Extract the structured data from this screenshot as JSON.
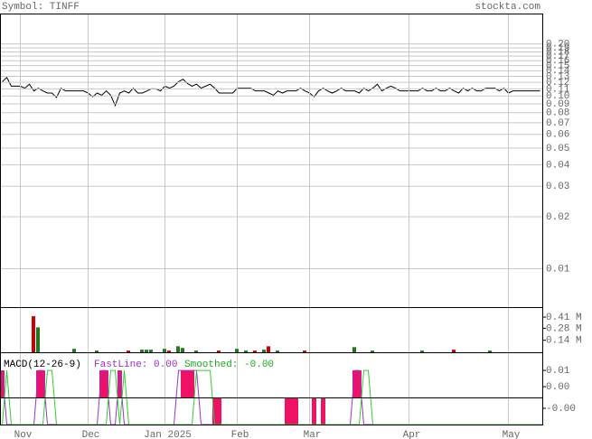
{
  "header": {
    "symbol": "Symbol: TINFF",
    "site": "stockta.com"
  },
  "chart_data": [
    {
      "type": "line",
      "scale": "log",
      "color": "#000000",
      "grid": true,
      "values": [
        0.121,
        0.128,
        0.114,
        0.114,
        0.114,
        0.111,
        0.117,
        0.107,
        0.111,
        0.107,
        0.104,
        0.104,
        0.098,
        0.111,
        0.107,
        0.107,
        0.107,
        0.107,
        0.107,
        0.104,
        0.099,
        0.104,
        0.101,
        0.107,
        0.101,
        0.088,
        0.104,
        0.107,
        0.104,
        0.111,
        0.104,
        0.104,
        0.107,
        0.11,
        0.11,
        0.107,
        0.114,
        0.111,
        0.114,
        0.121,
        0.125,
        0.118,
        0.114,
        0.117,
        0.111,
        0.114,
        0.117,
        0.111,
        0.104,
        0.104,
        0.104,
        0.104,
        0.111,
        0.111,
        0.111,
        0.111,
        0.107,
        0.107,
        0.107,
        0.104,
        0.101,
        0.107,
        0.104,
        0.107,
        0.107,
        0.107,
        0.111,
        0.107,
        0.104,
        0.099,
        0.107,
        0.111,
        0.107,
        0.104,
        0.107,
        0.111,
        0.107,
        0.107,
        0.107,
        0.104,
        0.111,
        0.107,
        0.111,
        0.117,
        0.107,
        0.111,
        0.114,
        0.111,
        0.107,
        0.107,
        0.107,
        0.107,
        0.107,
        0.111,
        0.107,
        0.107,
        0.111,
        0.107,
        0.107,
        0.111,
        0.107,
        0.104,
        0.111,
        0.107,
        0.111,
        0.107,
        0.107,
        0.111,
        0.111,
        0.111,
        0.107,
        0.111,
        0.104,
        0.107,
        0.107,
        0.107,
        0.107,
        0.107,
        0.107,
        0.107
      ],
      "ylim": [
        0.006,
        0.3
      ],
      "yticks": [
        {
          "value": 0.2,
          "label": "0.20"
        },
        {
          "value": 0.19,
          "label": "0.19"
        },
        {
          "value": 0.18,
          "label": "0.18"
        },
        {
          "value": 0.17,
          "label": "0.17"
        },
        {
          "value": 0.16,
          "label": "0.16"
        },
        {
          "value": 0.15,
          "label": "0.15"
        },
        {
          "value": 0.14,
          "label": "0.14"
        },
        {
          "value": 0.13,
          "label": "0.13"
        },
        {
          "value": 0.12,
          "label": "0.12"
        },
        {
          "value": 0.11,
          "label": "0.11"
        },
        {
          "value": 0.1,
          "label": "0.10"
        },
        {
          "value": 0.09,
          "label": "0.09"
        },
        {
          "value": 0.08,
          "label": "0.08"
        },
        {
          "value": 0.07,
          "label": "0.07"
        },
        {
          "value": 0.06,
          "label": "0.06"
        },
        {
          "value": 0.05,
          "label": "0.05"
        },
        {
          "value": 0.04,
          "label": "0.04"
        },
        {
          "value": 0.03,
          "label": "0.03"
        },
        {
          "value": 0.02,
          "label": "0.02"
        },
        {
          "value": 0.01,
          "label": "0.01"
        }
      ],
      "xticks": [
        {
          "value": 4,
          "label": "Nov"
        },
        {
          "value": 19,
          "label": "Dec"
        },
        {
          "value": 36,
          "label": "Jan 2025"
        },
        {
          "value": 52,
          "label": "Feb"
        },
        {
          "value": 68,
          "label": "Mar"
        },
        {
          "value": 90,
          "label": "Apr"
        },
        {
          "value": 112,
          "label": "May"
        }
      ]
    },
    {
      "type": "bar",
      "up_color": "#1f7a1f",
      "down_color": "#cc0000",
      "values": [
        0,
        0,
        0,
        0,
        0,
        0,
        0,
        0.42,
        0.29,
        0,
        0,
        0,
        0,
        0,
        0,
        0,
        0.04,
        0,
        0,
        0,
        0,
        0.02,
        0,
        0,
        0,
        0,
        0,
        0,
        0.02,
        0,
        0,
        0.03,
        0.03,
        0.03,
        0,
        0,
        0.04,
        0.02,
        0,
        0.07,
        0.05,
        0,
        0,
        0.02,
        0,
        0,
        0,
        0,
        0.02,
        0,
        0,
        0,
        0.04,
        0,
        0.02,
        0,
        0.02,
        0,
        0.03,
        0.07,
        0,
        0.02,
        0,
        0,
        0,
        0,
        0,
        0.02,
        0,
        0,
        0,
        0,
        0,
        0,
        0,
        0,
        0,
        0,
        0.06,
        0,
        0,
        0,
        0.02,
        0,
        0,
        0,
        0,
        0,
        0,
        0,
        0,
        0,
        0,
        0.02,
        0,
        0,
        0,
        0,
        0,
        0,
        0.03,
        0,
        0,
        0,
        0,
        0,
        0,
        0,
        0.02,
        0,
        0,
        0,
        0,
        0,
        0,
        0,
        0,
        0,
        0,
        0
      ],
      "ylim": [
        0,
        0.526
      ],
      "yticks": [
        {
          "value": 0.41,
          "label": "0.41 M"
        },
        {
          "value": 0.28,
          "label": "0.28 M"
        },
        {
          "value": 0.14,
          "label": "0.14 M"
        }
      ]
    },
    {
      "type": "macd",
      "title": "MACD(12-26-9)",
      "fast_label": "FastLine: 0.00",
      "smooth_label": "Smoothed: -0.00",
      "histogram": {
        "color": "#ee1166",
        "values": [
          0.01,
          0,
          0,
          0,
          0,
          0,
          0,
          0,
          0.01,
          0.01,
          0,
          0,
          0,
          0,
          0,
          0,
          0,
          0,
          0,
          0,
          0,
          0,
          0.01,
          0.01,
          0,
          0,
          0.01,
          0,
          0,
          0,
          0,
          0,
          0,
          0,
          0,
          0,
          0,
          0,
          0,
          0,
          0.01,
          0.01,
          0.01,
          0,
          0,
          0,
          0,
          -0.01,
          -0.01,
          0,
          0,
          0,
          0,
          0,
          0,
          0,
          0,
          0,
          0,
          0,
          0,
          0,
          0,
          -0.01,
          -0.01,
          -0.01,
          0,
          0,
          0,
          -0.01,
          0,
          -0.01,
          0,
          0,
          0,
          0,
          0,
          0,
          0.01,
          0.01,
          0,
          0,
          0,
          0,
          0,
          0,
          0,
          0,
          0,
          0,
          0,
          0,
          0,
          0,
          0,
          0,
          0,
          0,
          0,
          0,
          0,
          0,
          0,
          0,
          0,
          0,
          0,
          0,
          0,
          0,
          0,
          0,
          0,
          0,
          0,
          0,
          0,
          0,
          0,
          0
        ]
      },
      "series": [
        {
          "color": "#9933cc",
          "values": [
            0.01,
            -0.01,
            -0.01,
            -0.01,
            -0.01,
            -0.01,
            -0.01,
            -0.01,
            0.01,
            0.01,
            -0.01,
            -0.01,
            -0.01,
            -0.01,
            -0.01,
            -0.01,
            -0.01,
            -0.01,
            -0.01,
            -0.01,
            -0.01,
            -0.01,
            0.01,
            0.01,
            -0.01,
            -0.01,
            0.01,
            -0.01,
            -0.01,
            -0.01,
            -0.01,
            -0.01,
            -0.01,
            -0.01,
            -0.01,
            -0.01,
            -0.01,
            -0.01,
            -0.01,
            0.01,
            0.01,
            0.01,
            0.01,
            0.01,
            -0.01,
            -0.01,
            -0.01,
            -0.01,
            -0.01,
            -0.01,
            -0.01,
            -0.01,
            -0.01,
            -0.01,
            -0.01,
            -0.01,
            -0.01,
            -0.01,
            -0.01,
            -0.01,
            -0.01,
            -0.01,
            -0.01,
            -0.01,
            -0.01,
            -0.01,
            -0.01,
            -0.01,
            -0.01,
            -0.01,
            -0.01,
            -0.01,
            -0.01,
            -0.01,
            -0.01,
            -0.01,
            -0.01,
            -0.01,
            0.01,
            0.01,
            -0.01,
            -0.01,
            -0.01,
            -0.01,
            -0.01,
            -0.01,
            -0.01,
            -0.01,
            -0.01,
            -0.01,
            -0.01,
            -0.01,
            -0.01,
            -0.01,
            -0.01,
            -0.01,
            -0.01,
            -0.01,
            -0.01,
            -0.01,
            -0.01,
            -0.01,
            -0.01,
            -0.01,
            -0.01,
            -0.01,
            -0.01,
            -0.01,
            -0.01,
            -0.01,
            -0.01,
            -0.01,
            -0.01,
            -0.01,
            -0.01,
            -0.01,
            -0.01,
            -0.01,
            -0.01,
            -0.01
          ]
        },
        {
          "color": "#33cc33",
          "values": [
            -0.01,
            0.01,
            -0.01,
            -0.01,
            -0.01,
            -0.01,
            -0.01,
            -0.01,
            -0.01,
            -0.01,
            0.01,
            0.01,
            -0.01,
            -0.01,
            -0.01,
            -0.01,
            -0.01,
            -0.01,
            -0.01,
            -0.01,
            -0.01,
            -0.01,
            -0.01,
            -0.01,
            0.01,
            0.01,
            -0.01,
            0.01,
            -0.01,
            -0.01,
            -0.01,
            -0.01,
            -0.01,
            -0.01,
            -0.01,
            -0.01,
            -0.01,
            -0.01,
            -0.01,
            -0.01,
            -0.01,
            -0.01,
            -0.01,
            0.01,
            0.01,
            0.01,
            0.01,
            -0.01,
            -0.01,
            -0.01,
            -0.01,
            -0.01,
            -0.01,
            -0.01,
            -0.01,
            -0.01,
            -0.01,
            -0.01,
            -0.01,
            -0.01,
            -0.01,
            -0.01,
            -0.01,
            -0.01,
            -0.01,
            -0.01,
            -0.01,
            -0.01,
            -0.01,
            -0.01,
            -0.01,
            -0.01,
            -0.01,
            -0.01,
            -0.01,
            -0.01,
            -0.01,
            -0.01,
            -0.01,
            -0.01,
            0.01,
            0.01,
            -0.01,
            -0.01,
            -0.01,
            -0.01,
            -0.01,
            -0.01,
            -0.01,
            -0.01,
            -0.01,
            -0.01,
            -0.01,
            -0.01,
            -0.01,
            -0.01,
            -0.01,
            -0.01,
            -0.01,
            -0.01,
            -0.01,
            -0.01,
            -0.01,
            -0.01,
            -0.01,
            -0.01,
            -0.01,
            -0.01,
            -0.01,
            -0.01,
            -0.01,
            -0.01,
            -0.01,
            -0.01,
            -0.01,
            -0.01,
            -0.01,
            -0.01,
            -0.01,
            -0.01,
            -0.01,
            -0.01
          ]
        }
      ],
      "ylim": [
        -0.01,
        0.0167
      ],
      "yticks": [
        {
          "value": 0.01,
          "label": "0.01"
        },
        {
          "value": 0.004,
          "label": "0.00"
        },
        {
          "value": -0.004,
          "label": "-0.00"
        }
      ]
    }
  ]
}
